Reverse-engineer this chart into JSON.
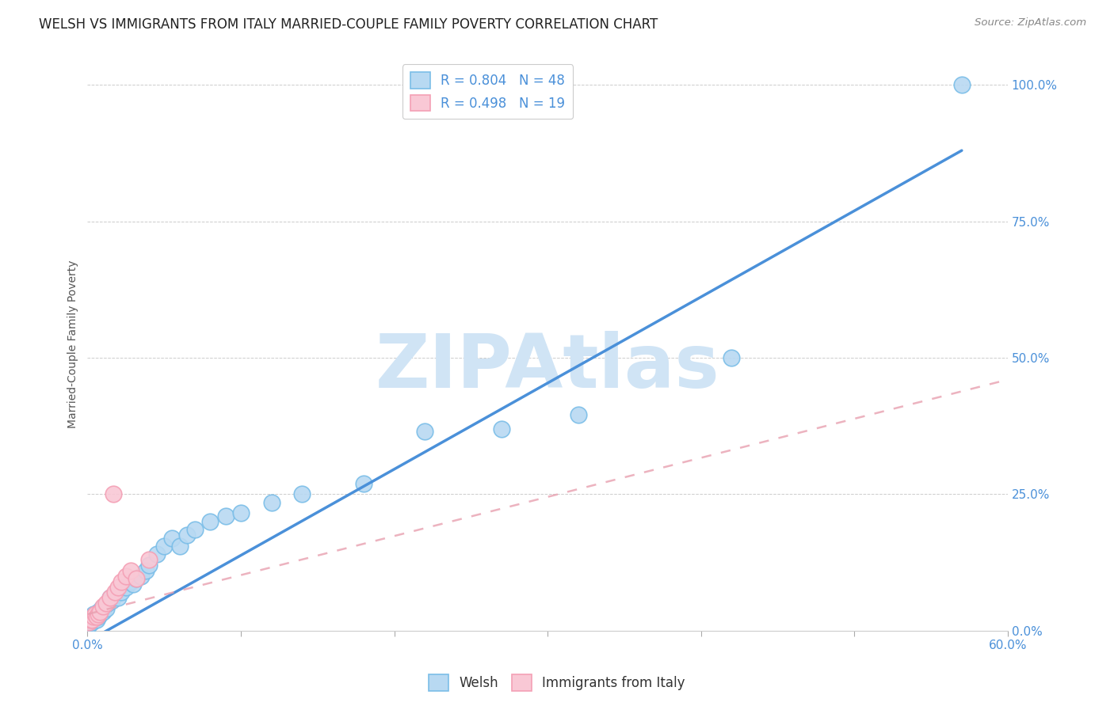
{
  "title": "WELSH VS IMMIGRANTS FROM ITALY MARRIED-COUPLE FAMILY POVERTY CORRELATION CHART",
  "source": "Source: ZipAtlas.com",
  "ylabel": "Married-Couple Family Poverty",
  "xlim": [
    0.0,
    0.6
  ],
  "ylim": [
    0.0,
    1.05
  ],
  "welsh_R": 0.804,
  "welsh_N": 48,
  "italy_R": 0.498,
  "italy_N": 19,
  "welsh_color": "#7bbee8",
  "welsh_fill": "#b8d9f2",
  "italy_color": "#f4a0b5",
  "italy_fill": "#f9c8d5",
  "regression_line_color_welsh": "#4a90d9",
  "regression_line_color_italy": "#e8a0b0",
  "watermark": "ZIPAtlas",
  "watermark_color": "#d0e4f5",
  "background_color": "#ffffff",
  "welsh_x": [
    0.001,
    0.002,
    0.002,
    0.003,
    0.003,
    0.004,
    0.004,
    0.005,
    0.005,
    0.006,
    0.006,
    0.007,
    0.007,
    0.008,
    0.009,
    0.01,
    0.011,
    0.012,
    0.013,
    0.015,
    0.016,
    0.018,
    0.02,
    0.022,
    0.025,
    0.028,
    0.03,
    0.032,
    0.035,
    0.038,
    0.04,
    0.045,
    0.05,
    0.055,
    0.06,
    0.065,
    0.07,
    0.08,
    0.09,
    0.1,
    0.12,
    0.14,
    0.18,
    0.22,
    0.27,
    0.32,
    0.42,
    0.57
  ],
  "welsh_y": [
    0.01,
    0.015,
    0.02,
    0.015,
    0.025,
    0.02,
    0.03,
    0.025,
    0.03,
    0.02,
    0.03,
    0.035,
    0.025,
    0.03,
    0.04,
    0.035,
    0.045,
    0.04,
    0.05,
    0.06,
    0.055,
    0.065,
    0.06,
    0.07,
    0.08,
    0.09,
    0.085,
    0.095,
    0.1,
    0.11,
    0.12,
    0.14,
    0.155,
    0.17,
    0.155,
    0.175,
    0.185,
    0.2,
    0.21,
    0.215,
    0.235,
    0.25,
    0.27,
    0.365,
    0.37,
    0.395,
    0.5,
    1.0
  ],
  "italy_x": [
    0.001,
    0.002,
    0.003,
    0.004,
    0.005,
    0.006,
    0.007,
    0.008,
    0.01,
    0.012,
    0.015,
    0.017,
    0.018,
    0.02,
    0.022,
    0.025,
    0.028,
    0.032,
    0.04
  ],
  "italy_y": [
    0.015,
    0.02,
    0.02,
    0.025,
    0.03,
    0.025,
    0.03,
    0.035,
    0.045,
    0.05,
    0.06,
    0.25,
    0.07,
    0.08,
    0.09,
    0.1,
    0.11,
    0.095,
    0.13
  ],
  "welsh_line_x0": 0.0,
  "welsh_line_y0": -0.02,
  "welsh_line_x1": 0.57,
  "welsh_line_y1": 0.88,
  "italy_line_x0": 0.0,
  "italy_line_y0": 0.03,
  "italy_line_x1": 0.6,
  "italy_line_y1": 0.46,
  "title_fontsize": 12,
  "axis_label_fontsize": 10,
  "tick_fontsize": 11,
  "legend_fontsize": 12
}
